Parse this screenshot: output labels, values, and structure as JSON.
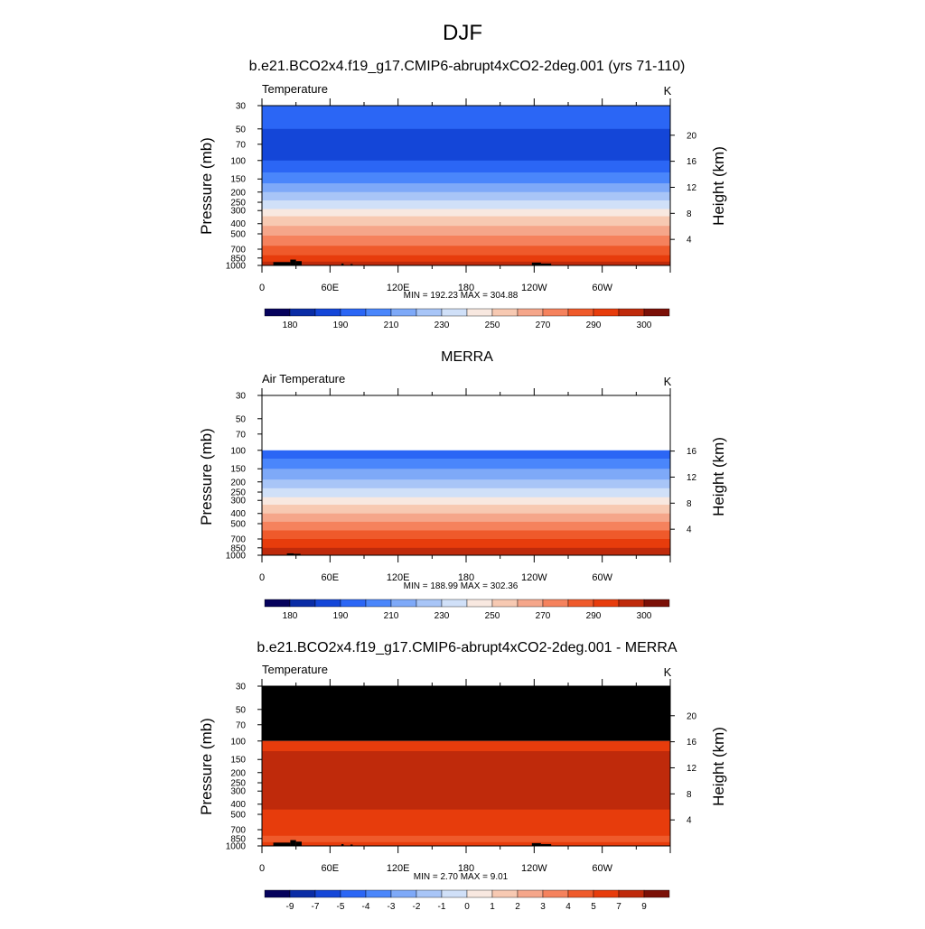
{
  "title": "DJF",
  "colors": {
    "ramp": [
      "#06025c",
      "#0a2ca5",
      "#1446d8",
      "#2b66f5",
      "#4a86fb",
      "#7ea9f8",
      "#a8c5f7",
      "#d0e0f8",
      "#f8e8e0",
      "#f7c9b2",
      "#f5a68a",
      "#f5825d",
      "#ef5a2b",
      "#e73c0c",
      "#bf2a0b",
      "#7b1007"
    ],
    "missing": "#000000"
  },
  "chart_data": [
    {
      "type": "heatmap",
      "id": "p1",
      "title": "b.e21.BCO2x4.f19_g17.CMIP6-abrupt4xCO2-2deg.001 (yrs 71-110)",
      "variable": "Temperature",
      "units": "K",
      "ylabel": "Pressure (mb)",
      "ylabel_right": "Height (km)",
      "stats": "MIN = 192.23  MAX = 304.88",
      "x_ticks": [
        "0",
        "60E",
        "120E",
        "180",
        "120W",
        "60W"
      ],
      "y_ticks": [
        "30",
        "50",
        "70",
        "100",
        "150",
        "200",
        "250",
        "300",
        "400",
        "500",
        "700",
        "850",
        "1000"
      ],
      "height_ticks": [
        "20",
        "16",
        "12",
        "8",
        "4"
      ],
      "colorbar_labels": [
        "180",
        "190",
        "210",
        "230",
        "250",
        "270",
        "290",
        "300"
      ],
      "bands": [
        {
          "p_top": 30,
          "p_bottom": 50,
          "level": 3
        },
        {
          "p_top": 50,
          "p_bottom": 100,
          "level": 2
        },
        {
          "p_top": 100,
          "p_bottom": 130,
          "level": 3
        },
        {
          "p_top": 130,
          "p_bottom": 165,
          "level": 4
        },
        {
          "p_top": 165,
          "p_bottom": 200,
          "level": 5
        },
        {
          "p_top": 200,
          "p_bottom": 240,
          "level": 6
        },
        {
          "p_top": 240,
          "p_bottom": 290,
          "level": 7
        },
        {
          "p_top": 290,
          "p_bottom": 340,
          "level": 8
        },
        {
          "p_top": 340,
          "p_bottom": 420,
          "level": 9
        },
        {
          "p_top": 420,
          "p_bottom": 520,
          "level": 10
        },
        {
          "p_top": 520,
          "p_bottom": 650,
          "level": 11
        },
        {
          "p_top": 650,
          "p_bottom": 800,
          "level": 12
        },
        {
          "p_top": 800,
          "p_bottom": 920,
          "level": 13
        },
        {
          "p_top": 920,
          "p_bottom": 1000,
          "level": 14
        }
      ],
      "terrain": [
        [
          10,
          25,
          930
        ],
        [
          25,
          30,
          880
        ],
        [
          30,
          35,
          910
        ],
        [
          70,
          72,
          960
        ],
        [
          78,
          80,
          970
        ],
        [
          238,
          246,
          940
        ],
        [
          246,
          255,
          960
        ]
      ]
    },
    {
      "type": "heatmap",
      "id": "p2",
      "title": "MERRA",
      "variable": "Air Temperature",
      "units": "K",
      "ylabel": "Pressure (mb)",
      "ylabel_right": "Height (km)",
      "stats": "MIN = 188.99  MAX = 302.36",
      "x_ticks": [
        "0",
        "60E",
        "120E",
        "180",
        "120W",
        "60W"
      ],
      "y_ticks": [
        "30",
        "50",
        "70",
        "100",
        "150",
        "200",
        "250",
        "300",
        "400",
        "500",
        "700",
        "850",
        "1000"
      ],
      "height_ticks": [
        "16",
        "12",
        "8",
        "4"
      ],
      "colorbar_labels": [
        "180",
        "190",
        "210",
        "230",
        "250",
        "270",
        "290",
        "300"
      ],
      "data_top_p": 100,
      "bands": [
        {
          "p_top": 100,
          "p_bottom": 120,
          "level": 3
        },
        {
          "p_top": 120,
          "p_bottom": 150,
          "level": 4
        },
        {
          "p_top": 150,
          "p_bottom": 190,
          "level": 5
        },
        {
          "p_top": 190,
          "p_bottom": 230,
          "level": 6
        },
        {
          "p_top": 230,
          "p_bottom": 280,
          "level": 7
        },
        {
          "p_top": 280,
          "p_bottom": 330,
          "level": 8
        },
        {
          "p_top": 330,
          "p_bottom": 400,
          "level": 9
        },
        {
          "p_top": 400,
          "p_bottom": 480,
          "level": 10
        },
        {
          "p_top": 480,
          "p_bottom": 580,
          "level": 11
        },
        {
          "p_top": 580,
          "p_bottom": 700,
          "level": 12
        },
        {
          "p_top": 700,
          "p_bottom": 850,
          "level": 13
        },
        {
          "p_top": 850,
          "p_bottom": 1000,
          "level": 14
        }
      ],
      "terrain": [
        [
          22,
          28,
          960
        ],
        [
          28,
          34,
          970
        ]
      ]
    },
    {
      "type": "heatmap",
      "id": "p3",
      "title": "b.e21.BCO2x4.f19_g17.CMIP6-abrupt4xCO2-2deg.001 - MERRA",
      "variable": "Temperature",
      "units": "K",
      "ylabel": "Pressure (mb)",
      "ylabel_right": "Height (km)",
      "stats": "MIN =   2.70  MAX =   9.01",
      "x_ticks": [
        "0",
        "60E",
        "120E",
        "180",
        "120W",
        "60W"
      ],
      "y_ticks": [
        "30",
        "50",
        "70",
        "100",
        "150",
        "200",
        "250",
        "300",
        "400",
        "500",
        "700",
        "850",
        "1000"
      ],
      "height_ticks": [
        "20",
        "16",
        "12",
        "8",
        "4"
      ],
      "colorbar_labels": [
        "-9",
        "-7",
        "-5",
        "-4",
        "-3",
        "-2",
        "-1",
        "0",
        "1",
        "2",
        "3",
        "4",
        "5",
        "7",
        "9"
      ],
      "missing_above_p": 100,
      "bands": [
        {
          "p_top": 100,
          "p_bottom": 125,
          "level": 13
        },
        {
          "p_top": 125,
          "p_bottom": 450,
          "level": 14
        },
        {
          "p_top": 450,
          "p_bottom": 800,
          "level": 13
        },
        {
          "p_top": 800,
          "p_bottom": 920,
          "level": 12
        },
        {
          "p_top": 920,
          "p_bottom": 1000,
          "level": 13
        }
      ],
      "terrain": [
        [
          10,
          25,
          930
        ],
        [
          25,
          30,
          880
        ],
        [
          30,
          35,
          910
        ],
        [
          70,
          72,
          960
        ],
        [
          78,
          80,
          970
        ],
        [
          238,
          246,
          940
        ],
        [
          246,
          255,
          960
        ]
      ]
    }
  ]
}
